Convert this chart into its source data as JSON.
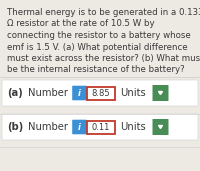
{
  "bg_color": "#ede9e3",
  "text_color": "#3a3a3a",
  "problem_text_lines": [
    "Thermal energy is to be generated in a 0.133",
    "Ω resistor at the rate of 10.5 W by",
    "connecting the resistor to a battery whose",
    "emf is 1.5 V. (a) What potential difference",
    "must exist across the resistor? (b) What must",
    "be the internal resistance of the battery?"
  ],
  "rows": [
    {
      "label": "(a)",
      "value": "8.85"
    },
    {
      "label": "(b)",
      "value": "0.11"
    }
  ],
  "info_btn_color": "#3b8fd4",
  "value_box_edge": "#c0392b",
  "value_box_bg": "#ffffff",
  "units_btn_color": "#4a8c56",
  "row_bg": "#ffffff",
  "row_edge": "#d0d0d0",
  "separator_color": "#cccccc",
  "font_size_problem": 6.2,
  "font_size_row": 7.2,
  "font_size_btn": 6.0
}
